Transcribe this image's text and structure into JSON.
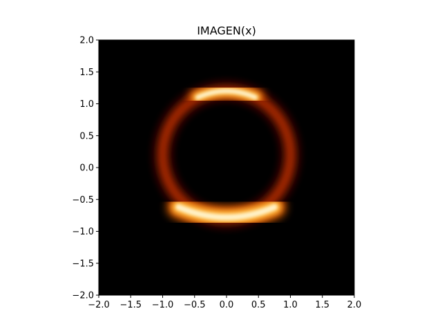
{
  "chart_data": {
    "type": "heatmap",
    "title": "IMAGEN(x)",
    "xlabel": "",
    "ylabel": "",
    "xlim": [
      -2.0,
      2.0
    ],
    "ylim": [
      -2.0,
      2.0
    ],
    "xticks": [
      -2.0,
      -1.5,
      -1.0,
      -0.5,
      0.0,
      0.5,
      1.0,
      1.5,
      2.0
    ],
    "yticks": [
      -2.0,
      -1.5,
      -1.0,
      -0.5,
      0.0,
      0.5,
      1.0,
      1.5,
      2.0
    ],
    "xtick_labels": [
      "−2.0",
      "−1.5",
      "−1.0",
      "−0.5",
      "0.0",
      "0.5",
      "1.0",
      "1.5",
      "2.0"
    ],
    "ytick_labels": [
      "−2.0",
      "−1.5",
      "−1.0",
      "−0.5",
      "0.0",
      "0.5",
      "1.0",
      "1.5",
      "2.0"
    ],
    "colormap": "afmhot",
    "grid": false,
    "features": [
      {
        "shape": "ring",
        "center": [
          0.0,
          0.2
        ],
        "radius": 1.0,
        "note": "lensed Einstein ring"
      },
      {
        "shape": "bright-arc",
        "center": [
          0.0,
          1.2
        ],
        "extent_x": [
          -0.45,
          0.45
        ]
      },
      {
        "shape": "bright-arc",
        "center": [
          0.0,
          -0.78
        ],
        "extent_x": [
          -0.75,
          0.75
        ]
      }
    ]
  }
}
